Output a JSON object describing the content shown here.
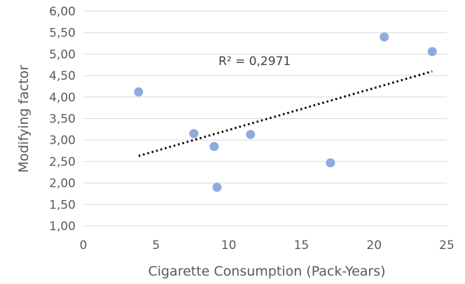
{
  "chart_data": {
    "type": "scatter",
    "title": "",
    "xlabel": "Cigarette Consumption (Pack-Years)",
    "ylabel": "Modifying factor",
    "xlim": [
      0,
      25
    ],
    "ylim": [
      1.0,
      6.0
    ],
    "x_ticks": [
      0,
      5,
      10,
      15,
      20,
      25
    ],
    "y_ticks": [
      1.0,
      1.5,
      2.0,
      2.5,
      3.0,
      3.5,
      4.0,
      4.5,
      5.0,
      5.5,
      6.0
    ],
    "x_tick_labels": [
      "0",
      "5",
      "10",
      "15",
      "20",
      "25"
    ],
    "y_tick_labels": [
      "1,00",
      "1,50",
      "2,00",
      "2,50",
      "3,00",
      "3,50",
      "4,00",
      "4,50",
      "5,00",
      "5,50",
      "6,00"
    ],
    "grid": "horizontal",
    "point_color": "#8faadc",
    "trendline": {
      "type": "linear",
      "style": "dotted",
      "color": "#000000",
      "x_range": [
        3.8,
        24.0
      ],
      "y_range": [
        2.63,
        4.6
      ]
    },
    "annotation": "R² = 0,2971",
    "points": [
      {
        "x": 3.8,
        "y": 4.12
      },
      {
        "x": 7.6,
        "y": 3.15
      },
      {
        "x": 9.0,
        "y": 2.85
      },
      {
        "x": 9.2,
        "y": 1.9
      },
      {
        "x": 11.5,
        "y": 3.13
      },
      {
        "x": 17.0,
        "y": 2.47
      },
      {
        "x": 20.7,
        "y": 5.4
      },
      {
        "x": 24.0,
        "y": 5.06
      }
    ]
  }
}
